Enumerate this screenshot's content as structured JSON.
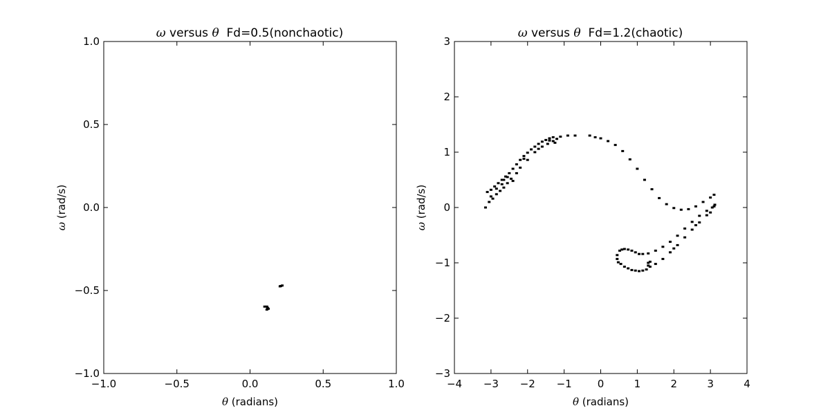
{
  "chart_data": [
    {
      "type": "scatter",
      "title": "ω versus θ  Fd=0.5(nonchaotic)",
      "title_sym1": "ω",
      "title_mid": " versus ",
      "title_sym2": "θ",
      "title_rest": "  Fd=0.5(nonchaotic)",
      "xlabel": "θ (radians)",
      "xlabel_sym": "θ",
      "xlabel_rest": " (radians)",
      "ylabel": "ω (rad/s)",
      "ylabel_sym": "ω",
      "ylabel_rest": " (rad/s)",
      "xlim": [
        -1.0,
        1.0
      ],
      "ylim": [
        -1.0,
        1.0
      ],
      "xticks": [
        -1.0,
        -0.5,
        0.0,
        0.5,
        1.0
      ],
      "yticks": [
        -1.0,
        -0.5,
        0.0,
        0.5,
        1.0
      ],
      "xtick_labels": [
        "−1.0",
        "−0.5",
        "0.0",
        "0.5",
        "1.0"
      ],
      "ytick_labels": [
        "−1.0",
        "−0.5",
        "0.0",
        "0.5",
        "1.0"
      ],
      "grid": false,
      "marker_color": "#000000",
      "points": [
        [
          0.21,
          -0.473
        ],
        [
          0.22,
          -0.47
        ],
        [
          0.205,
          -0.475
        ],
        [
          0.1,
          -0.597
        ],
        [
          0.115,
          -0.597
        ],
        [
          0.12,
          -0.605
        ],
        [
          0.115,
          -0.615
        ],
        [
          0.125,
          -0.61
        ]
      ]
    },
    {
      "type": "scatter",
      "title": "ω versus θ  Fd=1.2(chaotic)",
      "title_sym1": "ω",
      "title_mid": " versus ",
      "title_sym2": "θ",
      "title_rest": "  Fd=1.2(chaotic)",
      "xlabel": "θ (radians)",
      "xlabel_sym": "θ",
      "xlabel_rest": " (radians)",
      "ylabel": "ω (rad/s)",
      "ylabel_sym": "ω",
      "ylabel_rest": " (rad/s)",
      "xlim": [
        -4,
        4
      ],
      "ylim": [
        -3,
        3
      ],
      "xticks": [
        -4,
        -3,
        -2,
        -1,
        0,
        1,
        2,
        3,
        4
      ],
      "yticks": [
        -3,
        -2,
        -1,
        0,
        1,
        2,
        3
      ],
      "xtick_labels": [
        "−4",
        "−3",
        "−2",
        "−1",
        "0",
        "1",
        "2",
        "3",
        "4"
      ],
      "ytick_labels": [
        "−3",
        "−2",
        "−1",
        "0",
        "1",
        "2",
        "3"
      ],
      "grid": false,
      "marker_color": "#000000",
      "points": [
        [
          -3.1,
          0.28
        ],
        [
          -3.0,
          0.32
        ],
        [
          -2.9,
          0.38
        ],
        [
          -2.8,
          0.44
        ],
        [
          -2.7,
          0.5
        ],
        [
          -2.6,
          0.56
        ],
        [
          -2.5,
          0.62
        ],
        [
          -2.4,
          0.7
        ],
        [
          -2.3,
          0.78
        ],
        [
          -2.2,
          0.86
        ],
        [
          -2.1,
          0.93
        ],
        [
          -2.0,
          0.99
        ],
        [
          -1.9,
          1.05
        ],
        [
          -1.8,
          1.1
        ],
        [
          -1.7,
          1.15
        ],
        [
          -1.6,
          1.19
        ],
        [
          -1.5,
          1.22
        ],
        [
          -1.4,
          1.25
        ],
        [
          -1.3,
          1.27
        ],
        [
          -1.1,
          1.28
        ],
        [
          -0.9,
          1.3
        ],
        [
          -0.7,
          1.3
        ],
        [
          -0.3,
          1.3
        ],
        [
          -0.15,
          1.27
        ],
        [
          0.0,
          1.25
        ],
        [
          0.2,
          1.2
        ],
        [
          0.4,
          1.13
        ],
        [
          0.6,
          1.02
        ],
        [
          0.8,
          0.87
        ],
        [
          1.0,
          0.7
        ],
        [
          1.2,
          0.5
        ],
        [
          1.4,
          0.33
        ],
        [
          1.6,
          0.17
        ],
        [
          1.8,
          0.06
        ],
        [
          2.0,
          -0.01
        ],
        [
          2.2,
          -0.04
        ],
        [
          2.4,
          -0.03
        ],
        [
          2.6,
          0.02
        ],
        [
          2.8,
          0.1
        ],
        [
          3.0,
          0.18
        ],
        [
          3.1,
          0.23
        ],
        [
          -3.15,
          0.0
        ],
        [
          -3.05,
          0.1
        ],
        [
          -2.95,
          0.16
        ],
        [
          -2.85,
          0.24
        ],
        [
          -2.75,
          0.3
        ],
        [
          -2.65,
          0.36
        ],
        [
          -2.55,
          0.44
        ],
        [
          -2.45,
          0.52
        ],
        [
          -2.3,
          0.62
        ],
        [
          -2.2,
          0.72
        ],
        [
          -2.0,
          0.86
        ],
        [
          -1.8,
          1.0
        ],
        [
          -1.6,
          1.1
        ],
        [
          -1.45,
          1.15
        ],
        [
          -1.3,
          1.2
        ],
        [
          -1.2,
          1.24
        ],
        [
          -2.65,
          0.5
        ],
        [
          -2.55,
          0.55
        ],
        [
          -2.4,
          0.48
        ],
        [
          -2.7,
          0.42
        ],
        [
          -2.85,
          0.34
        ],
        [
          -3.0,
          0.2
        ],
        [
          -2.1,
          0.88
        ],
        [
          -1.7,
          1.06
        ],
        [
          -1.4,
          1.21
        ],
        [
          -1.25,
          1.17
        ],
        [
          0.45,
          -0.86
        ],
        [
          0.45,
          -0.93
        ],
        [
          0.48,
          -0.99
        ],
        [
          0.52,
          -0.78
        ],
        [
          0.58,
          -0.76
        ],
        [
          0.65,
          -0.75
        ],
        [
          0.75,
          -0.76
        ],
        [
          0.85,
          -0.78
        ],
        [
          0.95,
          -0.81
        ],
        [
          1.05,
          -0.84
        ],
        [
          1.15,
          -0.84
        ],
        [
          1.3,
          -0.83
        ],
        [
          1.5,
          -0.78
        ],
        [
          1.7,
          -0.71
        ],
        [
          1.9,
          -0.62
        ],
        [
          2.1,
          -0.51
        ],
        [
          2.3,
          -0.38
        ],
        [
          2.5,
          -0.26
        ],
        [
          2.7,
          -0.15
        ],
        [
          2.9,
          -0.06
        ],
        [
          3.05,
          0.0
        ],
        [
          0.55,
          -1.02
        ],
        [
          0.65,
          -1.07
        ],
        [
          0.75,
          -1.1
        ],
        [
          0.85,
          -1.13
        ],
        [
          0.95,
          -1.14
        ],
        [
          1.05,
          -1.15
        ],
        [
          1.15,
          -1.14
        ],
        [
          1.25,
          -1.12
        ],
        [
          1.35,
          -1.07
        ],
        [
          1.5,
          -1.02
        ],
        [
          1.7,
          -0.93
        ],
        [
          1.9,
          -0.81
        ],
        [
          2.1,
          -0.68
        ],
        [
          2.3,
          -0.54
        ],
        [
          2.5,
          -0.4
        ],
        [
          2.7,
          -0.27
        ],
        [
          2.9,
          -0.14
        ],
        [
          3.1,
          0.02
        ],
        [
          1.3,
          -1.0
        ],
        [
          1.3,
          -1.05
        ],
        [
          1.35,
          -0.98
        ],
        [
          2.0,
          -0.74
        ],
        [
          2.6,
          -0.32
        ],
        [
          3.0,
          -0.09
        ],
        [
          3.12,
          0.05
        ]
      ]
    }
  ]
}
